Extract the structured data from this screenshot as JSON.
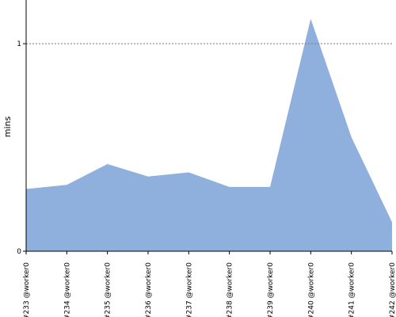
{
  "chart_data": {
    "type": "area",
    "ylabel": "mins",
    "xlabel": "",
    "title": "",
    "categories": [
      "#233 @worker0",
      "#234 @worker0",
      "#235 @worker0",
      "#236 @worker0",
      "#237 @worker0",
      "#238 @worker0",
      "#239 @worker0",
      "#240 @worker0",
      "#241 @worker0",
      "#242 @worker0"
    ],
    "values": [
      0.3,
      0.32,
      0.42,
      0.36,
      0.38,
      0.31,
      0.31,
      1.12,
      0.55,
      0.14
    ],
    "ylim": [
      0,
      1.18
    ],
    "yticks": [
      0,
      1
    ],
    "ytick_labels": [
      "0",
      "1"
    ],
    "reference_line": 1,
    "grid": false,
    "fill_color": "#8fb0dc",
    "reference_line_color": "#777777"
  }
}
